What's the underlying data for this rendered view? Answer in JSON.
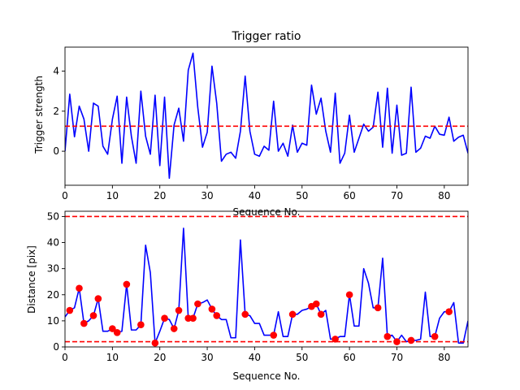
{
  "chart_data": [
    {
      "type": "line",
      "title": "Trigger ratio",
      "xlabel": "Sequence No.",
      "ylabel": "Trigger strength",
      "xlim": [
        0,
        85
      ],
      "ylim": [
        -1.7,
        5.2
      ],
      "xticks": [
        0,
        10,
        20,
        30,
        40,
        50,
        60,
        70,
        80
      ],
      "xtick_labels": [
        "0",
        "10",
        "20",
        "30",
        "40",
        "50",
        "60",
        "70",
        "80"
      ],
      "yticks": [
        0,
        2,
        4
      ],
      "ytick_labels": [
        "0",
        "2",
        "4"
      ],
      "grid": false,
      "colors": {
        "line": "#0000ff",
        "threshold": "#ff0000"
      },
      "series": [
        {
          "x": [
            0,
            1,
            2,
            3,
            4,
            5,
            6,
            7,
            8,
            9,
            10,
            11,
            12,
            13,
            14,
            15,
            16,
            17,
            18,
            19,
            20,
            21,
            22,
            23,
            24,
            25,
            26,
            27,
            28,
            29,
            30,
            31,
            32,
            33,
            34,
            35,
            36,
            37,
            38,
            39,
            40,
            41,
            42,
            43,
            44,
            45,
            46,
            47,
            48,
            49,
            50,
            51,
            52,
            53,
            54,
            55,
            56,
            57,
            58,
            59,
            60,
            61,
            62,
            63,
            64,
            65,
            66,
            67,
            68,
            69,
            70,
            71,
            72,
            73,
            74,
            75,
            76,
            77,
            78,
            79,
            80,
            81,
            82,
            83,
            84,
            85
          ],
          "values": [
            0.0,
            2.85,
            0.72,
            2.25,
            1.6,
            0.0,
            2.4,
            2.25,
            0.25,
            -0.15,
            1.6,
            2.75,
            -0.6,
            2.7,
            0.75,
            -0.6,
            3.0,
            0.75,
            -0.15,
            2.8,
            -0.72,
            2.7,
            -1.35,
            1.3,
            2.15,
            0.5,
            4.05,
            4.9,
            2.2,
            0.2,
            0.95,
            4.25,
            2.4,
            -0.5,
            -0.15,
            -0.05,
            -0.35,
            1.0,
            3.75,
            1.0,
            -0.15,
            -0.25,
            0.25,
            0.05,
            2.5,
            0.0,
            0.4,
            -0.25,
            1.3,
            -0.05,
            0.4,
            0.3,
            3.3,
            1.85,
            2.65,
            1.0,
            -0.05,
            2.9,
            -0.6,
            -0.1,
            1.8,
            -0.05,
            0.65,
            1.35,
            1.0,
            1.2,
            2.95,
            0.2,
            3.15,
            -0.1,
            2.3,
            -0.2,
            -0.1,
            3.2,
            -0.05,
            0.15,
            0.75,
            0.65,
            1.25,
            0.85,
            0.8,
            1.7,
            0.5,
            0.7,
            0.8,
            -0.1
          ]
        },
        {
          "threshold": 1.25
        }
      ]
    },
    {
      "type": "line",
      "title": "",
      "xlabel": "Sequence No.",
      "ylabel": "Distance [pix]",
      "xlim": [
        0,
        85
      ],
      "ylim": [
        0,
        52
      ],
      "xticks": [
        0,
        10,
        20,
        30,
        40,
        50,
        60,
        70,
        80
      ],
      "xtick_labels": [
        "0",
        "10",
        "20",
        "30",
        "40",
        "50",
        "60",
        "70",
        "80"
      ],
      "yticks": [
        0,
        10,
        20,
        30,
        40,
        50
      ],
      "ytick_labels": [
        "0",
        "10",
        "20",
        "30",
        "40",
        "50"
      ],
      "grid": false,
      "colors": {
        "line": "#0000ff",
        "threshold": "#ff0000",
        "markers": "#ff0000"
      },
      "series": [
        {
          "x": [
            0,
            1,
            2,
            3,
            4,
            5,
            6,
            7,
            8,
            9,
            10,
            11,
            12,
            13,
            14,
            15,
            16,
            17,
            18,
            19,
            20,
            21,
            22,
            23,
            24,
            25,
            26,
            27,
            28,
            29,
            30,
            31,
            32,
            33,
            34,
            35,
            36,
            37,
            38,
            39,
            40,
            41,
            42,
            43,
            44,
            45,
            46,
            47,
            48,
            49,
            50,
            51,
            52,
            53,
            54,
            55,
            56,
            57,
            58,
            59,
            60,
            61,
            62,
            63,
            64,
            65,
            66,
            67,
            68,
            69,
            70,
            71,
            72,
            73,
            74,
            75,
            76,
            77,
            78,
            79,
            80,
            81,
            82,
            83,
            84,
            85
          ],
          "values": [
            11.5,
            14.0,
            15.0,
            22.5,
            9.0,
            10.0,
            12.0,
            18.5,
            6.0,
            6.0,
            7.0,
            5.5,
            6.0,
            24.0,
            6.5,
            6.5,
            8.5,
            39.0,
            28.5,
            1.5,
            6.0,
            11.0,
            10.5,
            7.0,
            14.0,
            45.5,
            11.0,
            11.0,
            16.5,
            17.0,
            18.0,
            14.5,
            12.0,
            10.5,
            10.5,
            3.5,
            3.5,
            41.0,
            12.5,
            12.0,
            9.0,
            9.0,
            4.5,
            4.5,
            4.5,
            13.5,
            4.0,
            4.0,
            12.5,
            12.5,
            14.0,
            14.5,
            15.5,
            16.5,
            12.5,
            14.0,
            3.0,
            3.0,
            4.0,
            4.0,
            20.0,
            8.0,
            8.0,
            30.0,
            24.5,
            15.0,
            15.0,
            34.0,
            4.0,
            4.5,
            2.0,
            4.5,
            2.0,
            2.5,
            2.5,
            3.0,
            21.0,
            4.0,
            4.0,
            11.0,
            13.5,
            13.5,
            17.0,
            1.5,
            1.5,
            10.0
          ]
        },
        {
          "markers_x": [
            1,
            3,
            4,
            6,
            7,
            10,
            11,
            13,
            16,
            19,
            21,
            23,
            24,
            26,
            27,
            28,
            31,
            32,
            38,
            44,
            48,
            52,
            53,
            54,
            57,
            60,
            66,
            68,
            70,
            73,
            78,
            81
          ],
          "markers_y": [
            14.0,
            22.5,
            9.0,
            12.0,
            18.5,
            7.0,
            5.5,
            24.0,
            8.5,
            1.5,
            11.0,
            7.0,
            14.0,
            11.0,
            11.0,
            16.5,
            14.5,
            12.0,
            12.5,
            4.5,
            12.5,
            15.5,
            16.5,
            12.5,
            3.0,
            20.0,
            15.0,
            4.0,
            2.0,
            2.5,
            4.0,
            13.5
          ]
        },
        {
          "thresholds": [
            50,
            2
          ]
        }
      ]
    }
  ]
}
